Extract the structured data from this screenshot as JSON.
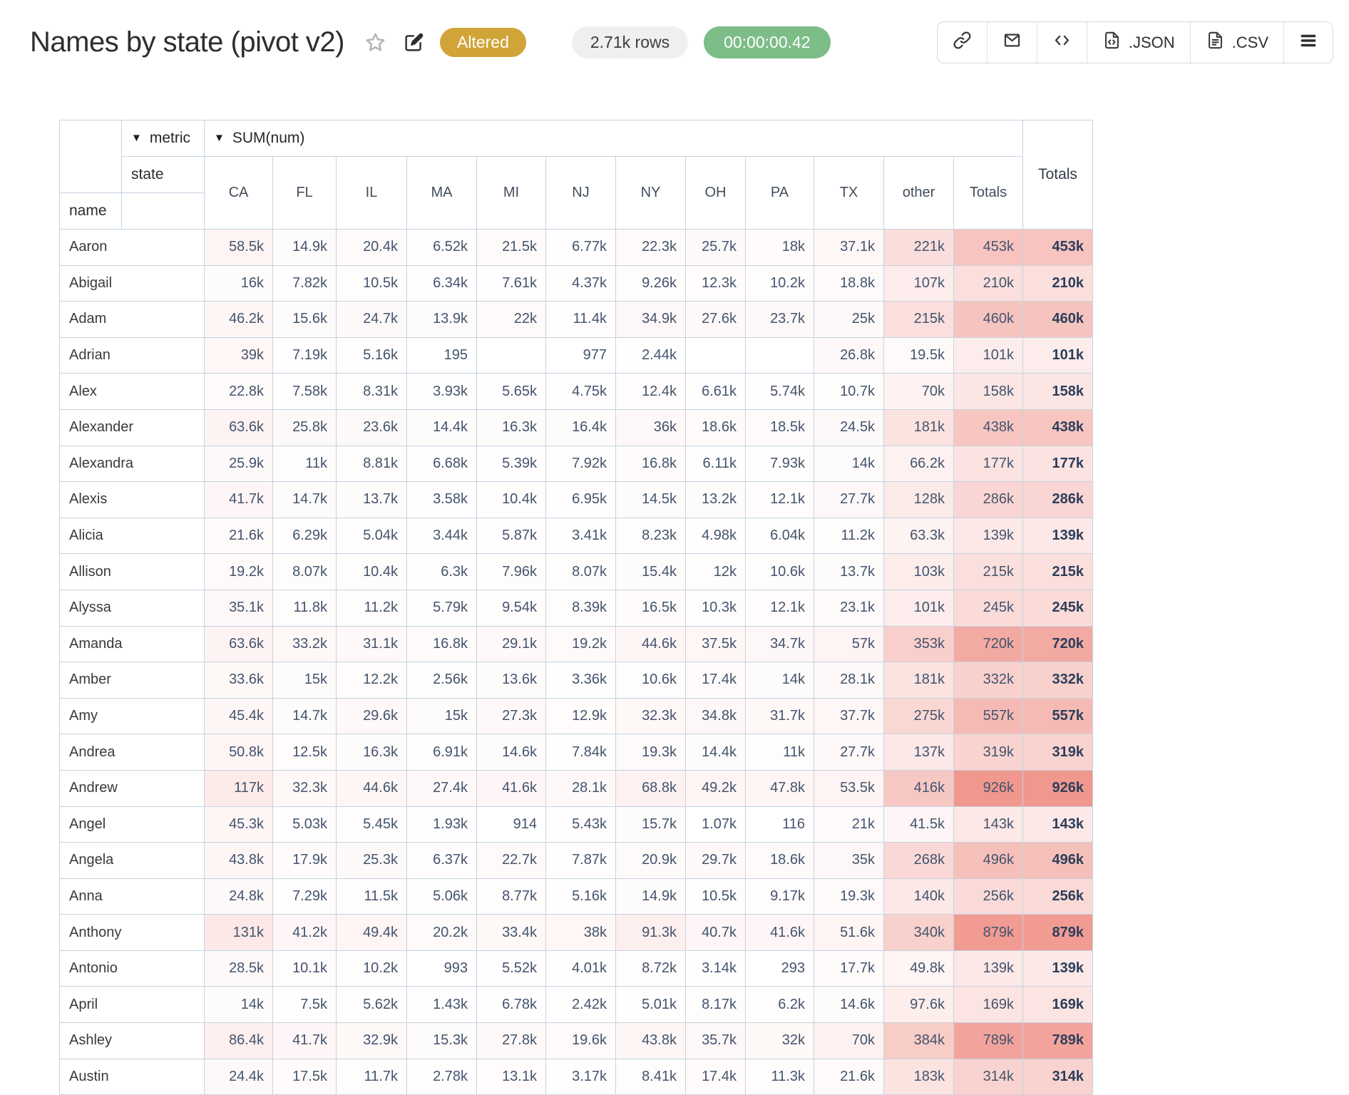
{
  "header": {
    "title": "Names by state (pivot v2)",
    "status_badge": "Altered",
    "rows_pill": "2.71k rows",
    "duration_pill": "00:00:00.42",
    "buttons": {
      "link_icon": "link-icon",
      "mail_icon": "mail-icon",
      "code_icon": "code-icon",
      "json_icon": "file-json-icon",
      "json_label": ".JSON",
      "csv_icon": "file-csv-icon",
      "csv_label": ".CSV",
      "menu_icon": "menu-icon"
    }
  },
  "colors": {
    "badge_gold": "#d1a438",
    "pill_gray": "#efefef",
    "pill_green": "#7cbd88",
    "table_border": "#c6d3e0",
    "heat_max": "#f0978e",
    "number_text": "#44546e"
  },
  "table": {
    "dropdown_arrow": "▼",
    "metric_label": "metric",
    "value_label": "SUM(num)",
    "state_label": "state",
    "name_label": "name",
    "totals_label": "Totals",
    "heat_max_value": 926000,
    "columns": [
      "CA",
      "FL",
      "IL",
      "MA",
      "MI",
      "NJ",
      "NY",
      "OH",
      "PA",
      "TX",
      "other",
      "Totals"
    ],
    "rows": [
      {
        "name": "Aaron",
        "values": [
          "58.5k",
          "14.9k",
          "20.4k",
          "6.52k",
          "21.5k",
          "6.77k",
          "22.3k",
          "25.7k",
          "18k",
          "37.1k",
          "221k"
        ],
        "total": "453k"
      },
      {
        "name": "Abigail",
        "values": [
          "16k",
          "7.82k",
          "10.5k",
          "6.34k",
          "7.61k",
          "4.37k",
          "9.26k",
          "12.3k",
          "10.2k",
          "18.8k",
          "107k"
        ],
        "total": "210k"
      },
      {
        "name": "Adam",
        "values": [
          "46.2k",
          "15.6k",
          "24.7k",
          "13.9k",
          "22k",
          "11.4k",
          "34.9k",
          "27.6k",
          "23.7k",
          "25k",
          "215k"
        ],
        "total": "460k"
      },
      {
        "name": "Adrian",
        "values": [
          "39k",
          "7.19k",
          "5.16k",
          "195",
          "",
          "977",
          "2.44k",
          "",
          "",
          "26.8k",
          "19.5k"
        ],
        "total": "101k"
      },
      {
        "name": "Alex",
        "values": [
          "22.8k",
          "7.58k",
          "8.31k",
          "3.93k",
          "5.65k",
          "4.75k",
          "12.4k",
          "6.61k",
          "5.74k",
          "10.7k",
          "70k"
        ],
        "total": "158k"
      },
      {
        "name": "Alexander",
        "values": [
          "63.6k",
          "25.8k",
          "23.6k",
          "14.4k",
          "16.3k",
          "16.4k",
          "36k",
          "18.6k",
          "18.5k",
          "24.5k",
          "181k"
        ],
        "total": "438k"
      },
      {
        "name": "Alexandra",
        "values": [
          "25.9k",
          "11k",
          "8.81k",
          "6.68k",
          "5.39k",
          "7.92k",
          "16.8k",
          "6.11k",
          "7.93k",
          "14k",
          "66.2k"
        ],
        "total": "177k"
      },
      {
        "name": "Alexis",
        "values": [
          "41.7k",
          "14.7k",
          "13.7k",
          "3.58k",
          "10.4k",
          "6.95k",
          "14.5k",
          "13.2k",
          "12.1k",
          "27.7k",
          "128k"
        ],
        "total": "286k"
      },
      {
        "name": "Alicia",
        "values": [
          "21.6k",
          "6.29k",
          "5.04k",
          "3.44k",
          "5.87k",
          "3.41k",
          "8.23k",
          "4.98k",
          "6.04k",
          "11.2k",
          "63.3k"
        ],
        "total": "139k"
      },
      {
        "name": "Allison",
        "values": [
          "19.2k",
          "8.07k",
          "10.4k",
          "6.3k",
          "7.96k",
          "8.07k",
          "15.4k",
          "12k",
          "10.6k",
          "13.7k",
          "103k"
        ],
        "total": "215k"
      },
      {
        "name": "Alyssa",
        "values": [
          "35.1k",
          "11.8k",
          "11.2k",
          "5.79k",
          "9.54k",
          "8.39k",
          "16.5k",
          "10.3k",
          "12.1k",
          "23.1k",
          "101k"
        ],
        "total": "245k"
      },
      {
        "name": "Amanda",
        "values": [
          "63.6k",
          "33.2k",
          "31.1k",
          "16.8k",
          "29.1k",
          "19.2k",
          "44.6k",
          "37.5k",
          "34.7k",
          "57k",
          "353k"
        ],
        "total": "720k"
      },
      {
        "name": "Amber",
        "values": [
          "33.6k",
          "15k",
          "12.2k",
          "2.56k",
          "13.6k",
          "3.36k",
          "10.6k",
          "17.4k",
          "14k",
          "28.1k",
          "181k"
        ],
        "total": "332k"
      },
      {
        "name": "Amy",
        "values": [
          "45.4k",
          "14.7k",
          "29.6k",
          "15k",
          "27.3k",
          "12.9k",
          "32.3k",
          "34.8k",
          "31.7k",
          "37.7k",
          "275k"
        ],
        "total": "557k"
      },
      {
        "name": "Andrea",
        "values": [
          "50.8k",
          "12.5k",
          "16.3k",
          "6.91k",
          "14.6k",
          "7.84k",
          "19.3k",
          "14.4k",
          "11k",
          "27.7k",
          "137k"
        ],
        "total": "319k"
      },
      {
        "name": "Andrew",
        "values": [
          "117k",
          "32.3k",
          "44.6k",
          "27.4k",
          "41.6k",
          "28.1k",
          "68.8k",
          "49.2k",
          "47.8k",
          "53.5k",
          "416k"
        ],
        "total": "926k"
      },
      {
        "name": "Angel",
        "values": [
          "45.3k",
          "5.03k",
          "5.45k",
          "1.93k",
          "914",
          "5.43k",
          "15.7k",
          "1.07k",
          "116",
          "21k",
          "41.5k"
        ],
        "total": "143k"
      },
      {
        "name": "Angela",
        "values": [
          "43.8k",
          "17.9k",
          "25.3k",
          "6.37k",
          "22.7k",
          "7.87k",
          "20.9k",
          "29.7k",
          "18.6k",
          "35k",
          "268k"
        ],
        "total": "496k"
      },
      {
        "name": "Anna",
        "values": [
          "24.8k",
          "7.29k",
          "11.5k",
          "5.06k",
          "8.77k",
          "5.16k",
          "14.9k",
          "10.5k",
          "9.17k",
          "19.3k",
          "140k"
        ],
        "total": "256k"
      },
      {
        "name": "Anthony",
        "values": [
          "131k",
          "41.2k",
          "49.4k",
          "20.2k",
          "33.4k",
          "38k",
          "91.3k",
          "40.7k",
          "41.6k",
          "51.6k",
          "340k"
        ],
        "total": "879k"
      },
      {
        "name": "Antonio",
        "values": [
          "28.5k",
          "10.1k",
          "10.2k",
          "993",
          "5.52k",
          "4.01k",
          "8.72k",
          "3.14k",
          "293",
          "17.7k",
          "49.8k"
        ],
        "total": "139k"
      },
      {
        "name": "April",
        "values": [
          "14k",
          "7.5k",
          "5.62k",
          "1.43k",
          "6.78k",
          "2.42k",
          "5.01k",
          "8.17k",
          "6.2k",
          "14.6k",
          "97.6k"
        ],
        "total": "169k"
      },
      {
        "name": "Ashley",
        "values": [
          "86.4k",
          "41.7k",
          "32.9k",
          "15.3k",
          "27.8k",
          "19.6k",
          "43.8k",
          "35.7k",
          "32k",
          "70k",
          "384k"
        ],
        "total": "789k"
      },
      {
        "name": "Austin",
        "values": [
          "24.4k",
          "17.5k",
          "11.7k",
          "2.78k",
          "13.1k",
          "3.17k",
          "8.41k",
          "17.4k",
          "11.3k",
          "21.6k",
          "183k"
        ],
        "total": "314k"
      }
    ]
  }
}
